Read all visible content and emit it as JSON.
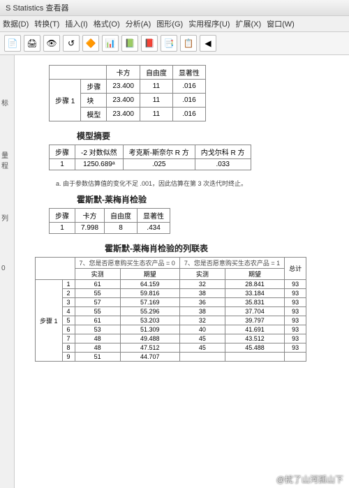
{
  "window": {
    "title": "S Statistics 查看器"
  },
  "menu": {
    "data": "数据(D)",
    "transform": "转换(T)",
    "insert": "插入(I)",
    "format": "格式(O)",
    "analyze": "分析(A)",
    "graphs": "图形(G)",
    "utilities": "实用程序(U)",
    "extensions": "扩展(X)",
    "window": "窗口(W)"
  },
  "toolbar_icons": [
    "📄",
    "🖨",
    "👁",
    "↺",
    "🔶",
    "📊",
    "📗",
    "📕",
    "📑",
    "📋",
    "◀"
  ],
  "sidetabs": {
    "a": "标",
    "b": "量程",
    "c": "列",
    "d": "0"
  },
  "t1": {
    "cols": {
      "chisq": "卡方",
      "df": "自由度",
      "sig": "显著性"
    },
    "rowgroup": "步骤 1",
    "rows": [
      {
        "label": "步骤",
        "chisq": "23.400",
        "df": "11",
        "sig": ".016"
      },
      {
        "label": "块",
        "chisq": "23.400",
        "df": "11",
        "sig": ".016"
      },
      {
        "label": "模型",
        "chisq": "23.400",
        "df": "11",
        "sig": ".016"
      }
    ]
  },
  "t2": {
    "title": "模型摘要",
    "cols": {
      "step": "步骤",
      "ll": "-2 对数似然",
      "cox": "考克斯-斯奈尔 R 方",
      "nag": "内戈尔科 R 方"
    },
    "row": {
      "step": "1",
      "ll": "1250.689ᵃ",
      "cox": ".025",
      "nag": ".033"
    },
    "footnote": "a. 由于参数估算值的变化不足 .001，因此估算在第 3 次迭代时终止。"
  },
  "t3": {
    "title": "霍斯默-莱梅肖检验",
    "cols": {
      "step": "步骤",
      "chisq": "卡方",
      "df": "自由度",
      "sig": "显著性"
    },
    "row": {
      "step": "1",
      "chisq": "7.998",
      "df": "8",
      "sig": ".434"
    }
  },
  "t4": {
    "title": "霍斯默-莱梅肖检验的列联表",
    "grouphead0": "7、您是否愿意购买生态农产品 = 0",
    "grouphead1": "7、您是否愿意购买生态农产品 = 1",
    "sub": {
      "obs": "实测",
      "exp": "期望",
      "total": "总计"
    },
    "rowgroup": "步骤 1",
    "rows": [
      {
        "n": "1",
        "o0": "61",
        "e0": "64.159",
        "o1": "32",
        "e1": "28.841",
        "t": "93"
      },
      {
        "n": "2",
        "o0": "55",
        "e0": "59.816",
        "o1": "38",
        "e1": "33.184",
        "t": "93"
      },
      {
        "n": "3",
        "o0": "57",
        "e0": "57.169",
        "o1": "36",
        "e1": "35.831",
        "t": "93"
      },
      {
        "n": "4",
        "o0": "55",
        "e0": "55.296",
        "o1": "38",
        "e1": "37.704",
        "t": "93"
      },
      {
        "n": "5",
        "o0": "61",
        "e0": "53.203",
        "o1": "32",
        "e1": "39.797",
        "t": "93"
      },
      {
        "n": "6",
        "o0": "53",
        "e0": "51.309",
        "o1": "40",
        "e1": "41.691",
        "t": "93"
      },
      {
        "n": "7",
        "o0": "48",
        "e0": "49.488",
        "o1": "45",
        "e1": "43.512",
        "t": "93"
      },
      {
        "n": "8",
        "o0": "48",
        "e0": "47.512",
        "o1": "45",
        "e1": "45.488",
        "t": "93"
      },
      {
        "n": "9",
        "o0": "51",
        "e0": "44.707",
        "o1": "",
        "e1": "",
        "t": ""
      }
    ]
  },
  "watermark": "@扰了山河孤山下"
}
